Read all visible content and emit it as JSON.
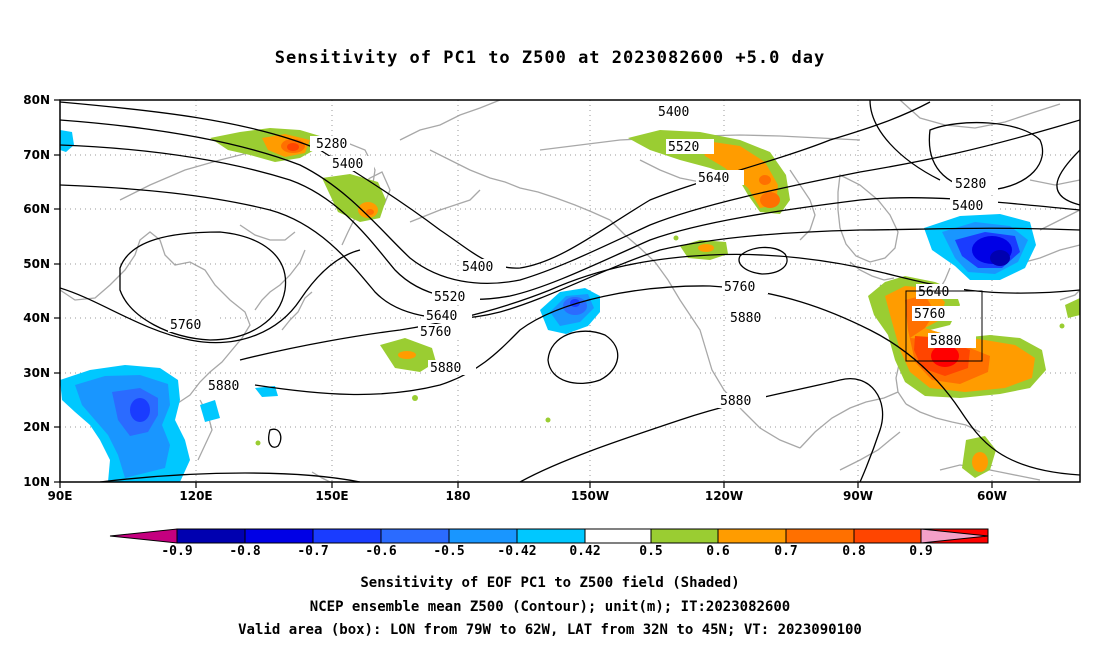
{
  "title": "Sensitivity of PC1 to Z500 at 2023082600 +5.0 day",
  "map": {
    "lat_ticks": [
      "80N",
      "70N",
      "60N",
      "50N",
      "40N",
      "30N",
      "20N",
      "10N"
    ],
    "lon_ticks": [
      "90E",
      "120E",
      "150E",
      "180",
      "150W",
      "120W",
      "90W",
      "60W"
    ],
    "contour_labels": [
      "5280",
      "5400",
      "5400",
      "5520",
      "5640",
      "5280",
      "5400",
      "5400",
      "5520",
      "5640",
      "5760",
      "5760",
      "5880",
      "5640",
      "5760",
      "5880",
      "5880",
      "5880"
    ],
    "valid_box": {
      "lon_from": "79W",
      "lon_to": "62W",
      "lat_from": "32N",
      "lat_to": "45N"
    }
  },
  "colorbar": {
    "labels": [
      "-0.9",
      "-0.8",
      "-0.7",
      "-0.6",
      "-0.5",
      "-0.42",
      "0.42",
      "0.5",
      "0.6",
      "0.7",
      "0.8",
      "0.9"
    ],
    "colors": [
      "#c4007f",
      "#0000b0",
      "#0000e6",
      "#1a3cff",
      "#2b6bff",
      "#1996ff",
      "#00c8ff",
      "#ffffff",
      "#9acd32",
      "#ff9c00",
      "#ff7000",
      "#ff4500",
      "#ff0000",
      "#f4a0c8"
    ]
  },
  "captions": {
    "line1": "Sensitivity of EOF PC1 to Z500 field (Shaded)",
    "line2": "NCEP ensemble mean Z500 (Contour); unit(m); IT:2023082600",
    "line3": "Valid area (box): LON from 79W to 62W, LAT from 32N to 45N; VT: 2023090100"
  }
}
